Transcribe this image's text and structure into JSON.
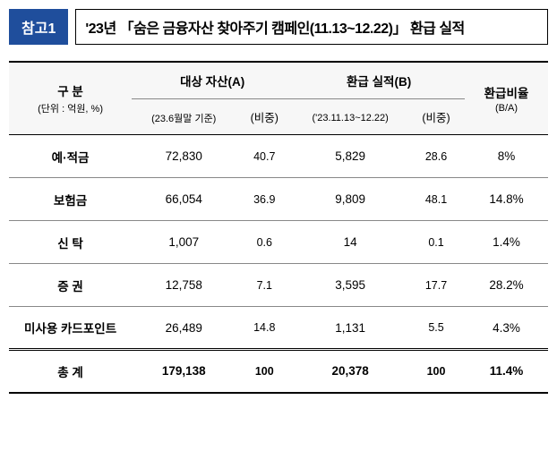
{
  "header": {
    "badge": "참고1",
    "title": "'23년 「숨은 금융자산 찾아주기 캠페인(11.13~12.22)」 환급 실적"
  },
  "table": {
    "columns": {
      "category": "구 분",
      "category_sub": "(단위 : 억원, %)",
      "asset": "대상 자산(A)",
      "asset_sub": "(23.6월말 기준)",
      "asset_share": "(비중)",
      "refund": "환급 실적(B)",
      "refund_sub": "('23.11.13~12.22)",
      "refund_share": "(비중)",
      "ratio": "환급비율",
      "ratio_sub": "(B/A)"
    },
    "rows": [
      {
        "label": "예·적금",
        "asset": "72,830",
        "asset_share": "40.7",
        "refund": "5,829",
        "refund_share": "28.6",
        "ratio": "8%"
      },
      {
        "label": "보험금",
        "asset": "66,054",
        "asset_share": "36.9",
        "refund": "9,809",
        "refund_share": "48.1",
        "ratio": "14.8%"
      },
      {
        "label": "신 탁",
        "asset": "1,007",
        "asset_share": "0.6",
        "refund": "14",
        "refund_share": "0.1",
        "ratio": "1.4%"
      },
      {
        "label": "증 권",
        "asset": "12,758",
        "asset_share": "7.1",
        "refund": "3,595",
        "refund_share": "17.7",
        "ratio": "28.2%"
      },
      {
        "label": "미사용 카드포인트",
        "asset": "26,489",
        "asset_share": "14.8",
        "refund": "1,131",
        "refund_share": "5.5",
        "ratio": "4.3%"
      }
    ],
    "total": {
      "label": "총 계",
      "asset": "179,138",
      "asset_share": "100",
      "refund": "20,378",
      "refund_share": "100",
      "ratio": "11.4%"
    }
  }
}
